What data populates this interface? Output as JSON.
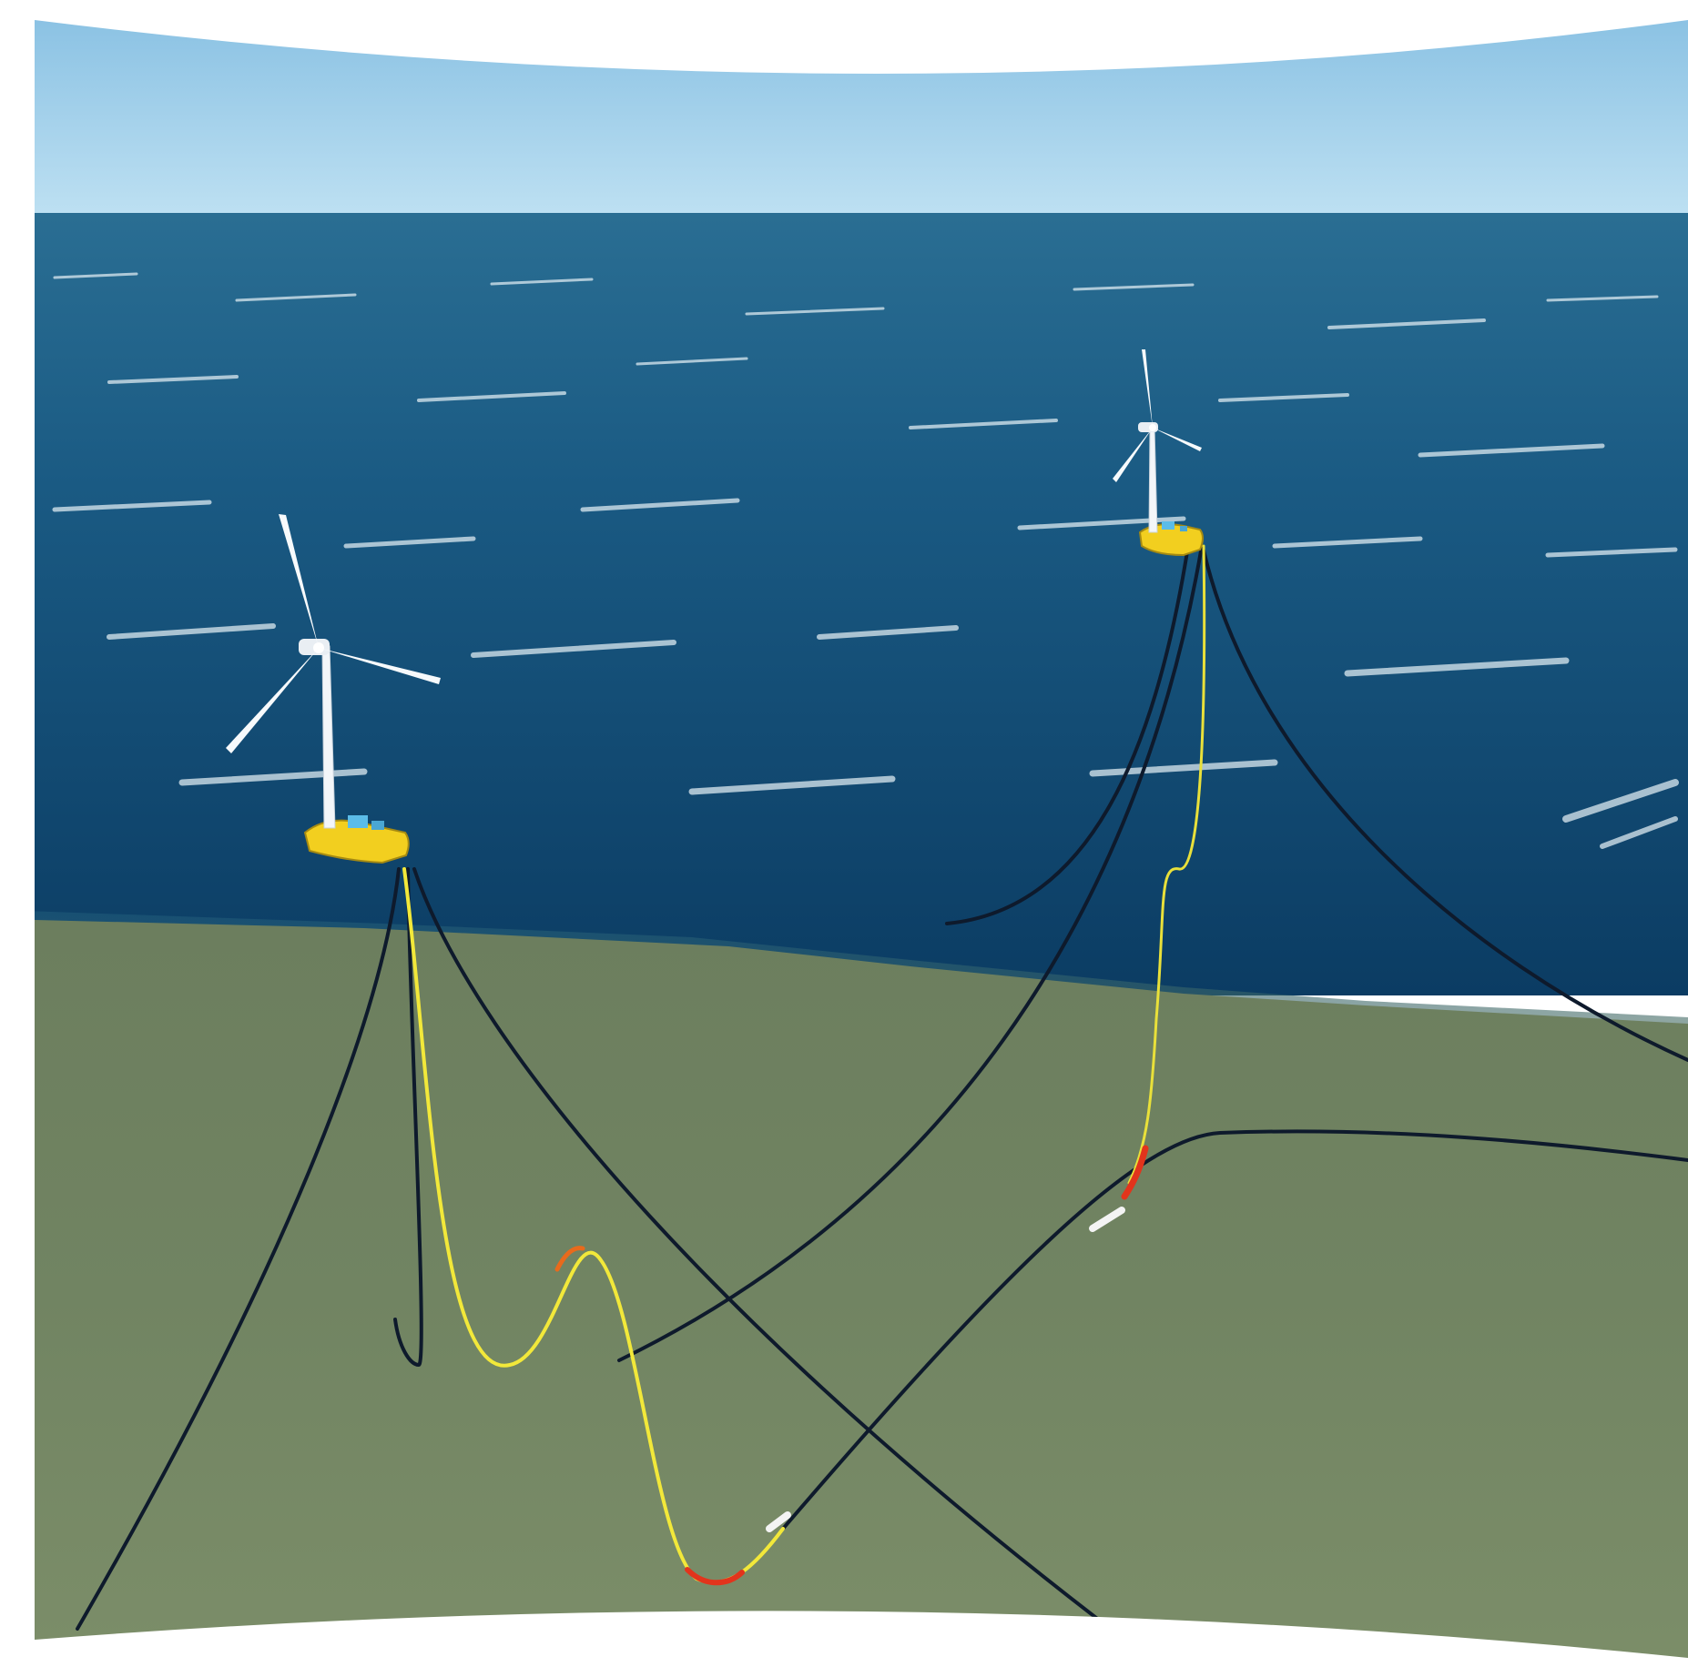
{
  "scene": {
    "subject": "floating-offshore-wind-turbines-with-mooring-lines-and-dynamic-cables",
    "colors": {
      "sky_top": "#8fc4e4",
      "sky_horizon": "#b9def1",
      "sea_far": "#2b6f93",
      "sea_near": "#0d3f66",
      "seabed_light": "#7d8f6a",
      "seabed_dark": "#5f7252",
      "platform": "#f2cf1f",
      "nacelle": "#5bbce8",
      "mooring_line": "#0e1a2c",
      "dynamic_cable": "#f2e83a",
      "bend_stiffener": "#e2341c",
      "buoyancy_module": "#f4f4f4"
    },
    "icons": [
      "wind-turbine-icon",
      "floating-platform-icon",
      "mooring-line-icon",
      "export-cable-icon"
    ]
  }
}
